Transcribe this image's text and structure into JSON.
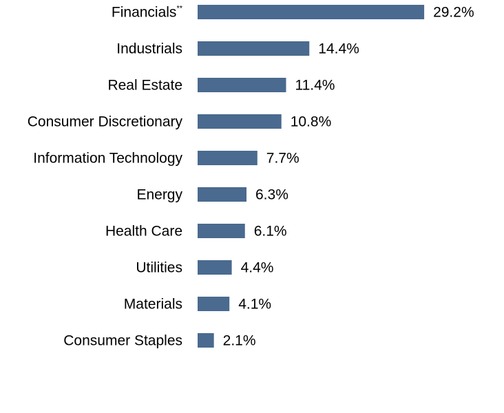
{
  "chart_data": {
    "type": "bar",
    "orientation": "horizontal",
    "categories": [
      "Financials",
      "Industrials",
      "Real Estate",
      "Consumer Discretionary",
      "Information Technology",
      "Energy",
      "Health Care",
      "Utilities",
      "Materials",
      "Consumer Staples"
    ],
    "category_superscripts": [
      "**",
      "",
      "",
      "",
      "",
      "",
      "",
      "",
      "",
      ""
    ],
    "values": [
      29.2,
      14.4,
      11.4,
      10.8,
      7.7,
      6.3,
      6.1,
      4.4,
      4.1,
      2.1
    ],
    "value_labels": [
      "29.2%",
      "14.4%",
      "11.4%",
      "10.8%",
      "7.7%",
      "6.3%",
      "6.1%",
      "4.4%",
      "4.1%",
      "2.1%"
    ],
    "bar_color": "#4a6a8f",
    "grid": false,
    "axes_visible": false
  }
}
